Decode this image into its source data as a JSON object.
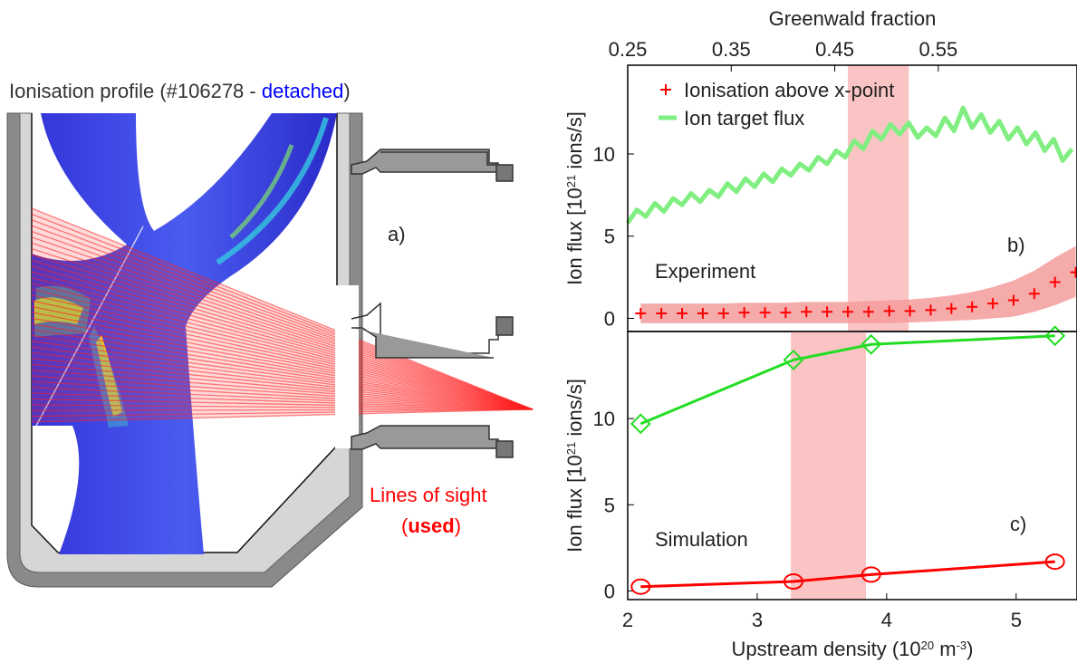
{
  "diagram": {
    "title": [
      "Ionisation profile (#106278 - ",
      "detached",
      ")"
    ],
    "panel": "a)",
    "legend": [
      "Lines of sight",
      "(",
      "used",
      ")"
    ]
  },
  "chart_data": [
    {
      "type": "line",
      "panel": "b)",
      "label": "Experiment",
      "x2label": "Greenwald fraction",
      "x2lim": [
        0.25,
        0.684
      ],
      "x2ticks": [
        0.25,
        0.35,
        0.45,
        0.55
      ],
      "xlim": [
        2,
        5.47
      ],
      "ylim": [
        -0.8,
        15.4
      ],
      "yticks": [
        0,
        5,
        10
      ],
      "ylabel": [
        "Ion flux [10",
        "21",
        " ions/s]"
      ],
      "highlight": [
        3.7,
        4.17
      ],
      "highlight_color": "#fbc4c4",
      "legend_corner": "upper left",
      "series": [
        {
          "name": "Ionisation above x-point",
          "color": "#ff0000",
          "marker": "plus",
          "line": false,
          "band_color": "#f59c9c",
          "x": [
            2.1,
            2.26,
            2.42,
            2.58,
            2.74,
            2.9,
            3.06,
            3.22,
            3.38,
            3.54,
            3.7,
            3.86,
            4.02,
            4.18,
            4.34,
            4.5,
            4.66,
            4.82,
            4.98,
            5.14,
            5.3,
            5.46
          ],
          "values": [
            0.3,
            0.3,
            0.3,
            0.3,
            0.3,
            0.35,
            0.35,
            0.35,
            0.4,
            0.4,
            0.4,
            0.4,
            0.45,
            0.45,
            0.5,
            0.6,
            0.7,
            0.9,
            1.1,
            1.5,
            2.2,
            2.8
          ],
          "upper": [
            0.9,
            0.9,
            0.9,
            0.9,
            0.9,
            0.95,
            0.95,
            0.95,
            1.0,
            1.0,
            1.0,
            1.05,
            1.1,
            1.15,
            1.25,
            1.4,
            1.6,
            1.9,
            2.3,
            2.9,
            3.7,
            4.4
          ],
          "lower": [
            -0.3,
            -0.3,
            -0.3,
            -0.3,
            -0.3,
            -0.3,
            -0.3,
            -0.3,
            -0.3,
            -0.3,
            -0.3,
            -0.3,
            -0.3,
            -0.25,
            -0.2,
            -0.15,
            -0.1,
            0.0,
            0.1,
            0.4,
            0.8,
            1.3
          ]
        },
        {
          "name": "Ion target flux",
          "color": "#80ee80",
          "marker": "none",
          "line": true,
          "width": 5,
          "x": [
            2.0,
            2.07,
            2.14,
            2.21,
            2.28,
            2.35,
            2.42,
            2.49,
            2.56,
            2.63,
            2.7,
            2.77,
            2.84,
            2.91,
            2.98,
            3.05,
            3.12,
            3.19,
            3.26,
            3.33,
            3.4,
            3.47,
            3.54,
            3.61,
            3.68,
            3.75,
            3.82,
            3.89,
            3.96,
            4.03,
            4.1,
            4.17,
            4.24,
            4.31,
            4.38,
            4.45,
            4.52,
            4.59,
            4.66,
            4.73,
            4.8,
            4.87,
            4.94,
            5.01,
            5.08,
            5.15,
            5.22,
            5.29,
            5.36,
            5.43
          ],
          "values": [
            5.8,
            6.6,
            6.2,
            7.0,
            6.5,
            7.3,
            6.9,
            7.6,
            7.1,
            7.8,
            7.4,
            8.2,
            7.7,
            8.5,
            8.0,
            8.8,
            8.3,
            9.1,
            8.7,
            9.4,
            9.0,
            9.8,
            9.4,
            10.2,
            9.8,
            10.8,
            10.3,
            11.4,
            10.9,
            11.8,
            11.2,
            11.9,
            11.0,
            11.6,
            11.1,
            12.2,
            11.4,
            12.8,
            11.6,
            12.4,
            11.3,
            12.0,
            10.9,
            11.6,
            10.6,
            11.3,
            10.2,
            10.9,
            9.6,
            10.3
          ]
        }
      ]
    },
    {
      "type": "line",
      "panel": "c)",
      "label": "Simulation",
      "xlabel": [
        "Upstream density (10",
        "20",
        " m",
        "-3",
        ")"
      ],
      "xlim": [
        2,
        5.47
      ],
      "xticks": [
        2,
        3,
        4,
        5
      ],
      "ylim": [
        -0.5,
        15.05
      ],
      "yticks": [
        0,
        5,
        10
      ],
      "ylabel": [
        "Ion flux [10",
        "21",
        " ions/s]"
      ],
      "highlight": [
        3.26,
        3.84
      ],
      "highlight_color": "#fbc4c4",
      "series": [
        {
          "color": "#22dd22",
          "marker": "diamond",
          "line": true,
          "width": 3,
          "x": [
            2.1,
            3.28,
            3.88,
            5.3
          ],
          "values": [
            9.7,
            13.4,
            14.3,
            14.8
          ]
        },
        {
          "color": "#ff0000",
          "marker": "circle",
          "line": true,
          "width": 3,
          "x": [
            2.1,
            3.28,
            3.88,
            5.3
          ],
          "values": [
            0.25,
            0.55,
            0.95,
            1.7
          ]
        }
      ]
    }
  ]
}
